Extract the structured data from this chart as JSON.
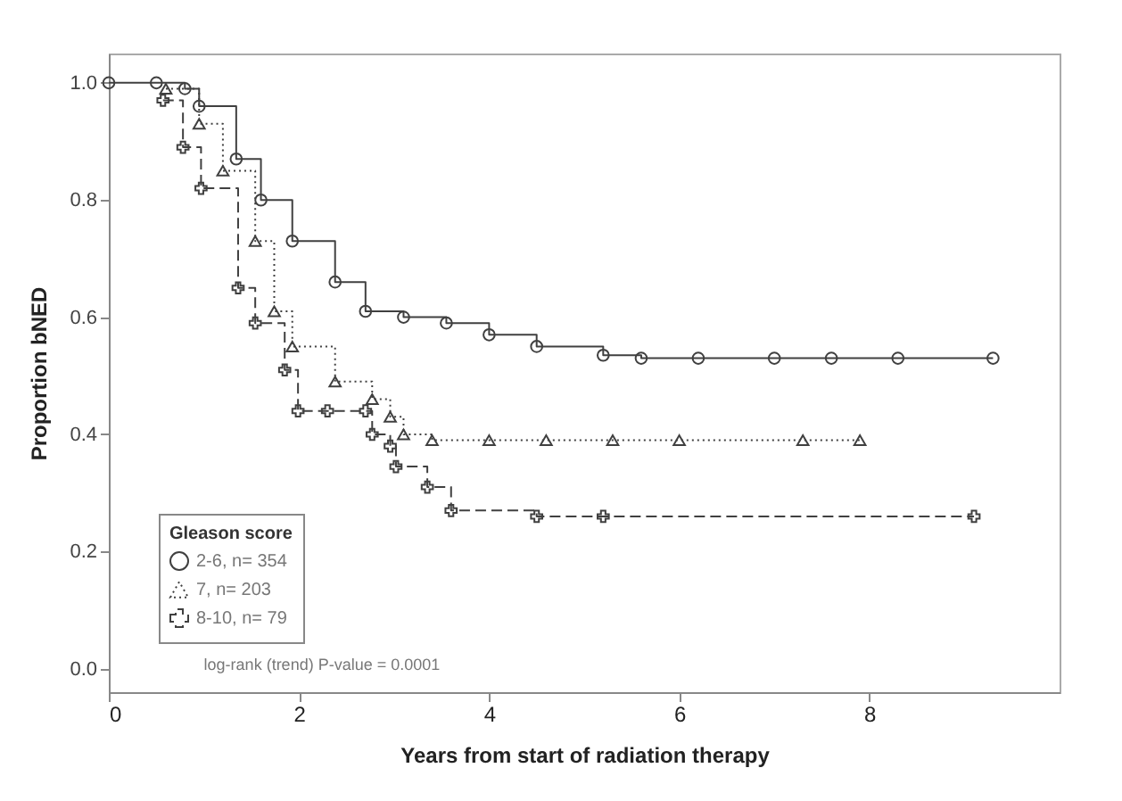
{
  "chart_data": {
    "type": "step",
    "xlabel": "Years from start of radiation therapy",
    "ylabel": "Proportion bNED",
    "legend_title": "Gleason score",
    "legend": "bottom left",
    "grid": false,
    "xlim": [
      0,
      10
    ],
    "xticks": [
      0,
      2,
      4,
      6,
      8
    ],
    "ylim": [
      -0.04,
      1.05
    ],
    "yticks": [
      {
        "value": 0,
        "label": "0.0"
      },
      {
        "value": 0.2,
        "label": "0.2"
      },
      {
        "value": 0.4,
        "label": "0.4"
      },
      {
        "value": 0.6,
        "label": "0.6"
      },
      {
        "value": 0.8,
        "label": "0.8"
      },
      {
        "value": 1,
        "label": "1.0"
      }
    ],
    "annotations": [
      "log-rank (trend) P-value = 0.0001"
    ],
    "series": [
      {
        "name": "2-6, n= 354",
        "color": "#404040",
        "marker": "circle",
        "line_style": "solid",
        "x": [
          0,
          0.5,
          0.8,
          0.95,
          1.34,
          1.6,
          1.93,
          2.38,
          2.7,
          3.1,
          3.55,
          4.0,
          4.5,
          5.2,
          5.6,
          6.2,
          7.0,
          7.6,
          8.3,
          9.3
        ],
        "values": [
          1.0,
          1.0,
          0.99,
          0.96,
          0.87,
          0.8,
          0.73,
          0.66,
          0.61,
          0.6,
          0.59,
          0.57,
          0.55,
          0.535,
          0.53,
          0.53,
          0.53,
          0.53,
          0.53,
          0.53
        ]
      },
      {
        "name": "7, n= 203",
        "color": "#404040",
        "marker": "triangle",
        "line_style": "dotted",
        "x": [
          0.6,
          0.95,
          1.2,
          1.54,
          1.74,
          1.93,
          2.38,
          2.77,
          2.96,
          3.1,
          3.4,
          4.0,
          4.6,
          5.3,
          6.0,
          7.3,
          7.9
        ],
        "values": [
          0.99,
          0.93,
          0.85,
          0.73,
          0.61,
          0.55,
          0.49,
          0.46,
          0.43,
          0.4,
          0.39,
          0.39,
          0.39,
          0.39,
          0.39,
          0.39,
          0.39
        ]
      },
      {
        "name": "8-10, n= 79",
        "color": "#404040",
        "marker": "cross",
        "line_style": "dashed",
        "x": [
          0.57,
          0.78,
          0.97,
          1.36,
          1.54,
          1.85,
          1.99,
          2.3,
          2.7,
          2.77,
          2.96,
          3.02,
          3.35,
          3.6,
          4.5,
          5.2,
          9.1
        ],
        "values": [
          0.97,
          0.89,
          0.82,
          0.65,
          0.59,
          0.51,
          0.44,
          0.44,
          0.44,
          0.4,
          0.38,
          0.345,
          0.31,
          0.27,
          0.26,
          0.26,
          0.26
        ]
      }
    ]
  }
}
